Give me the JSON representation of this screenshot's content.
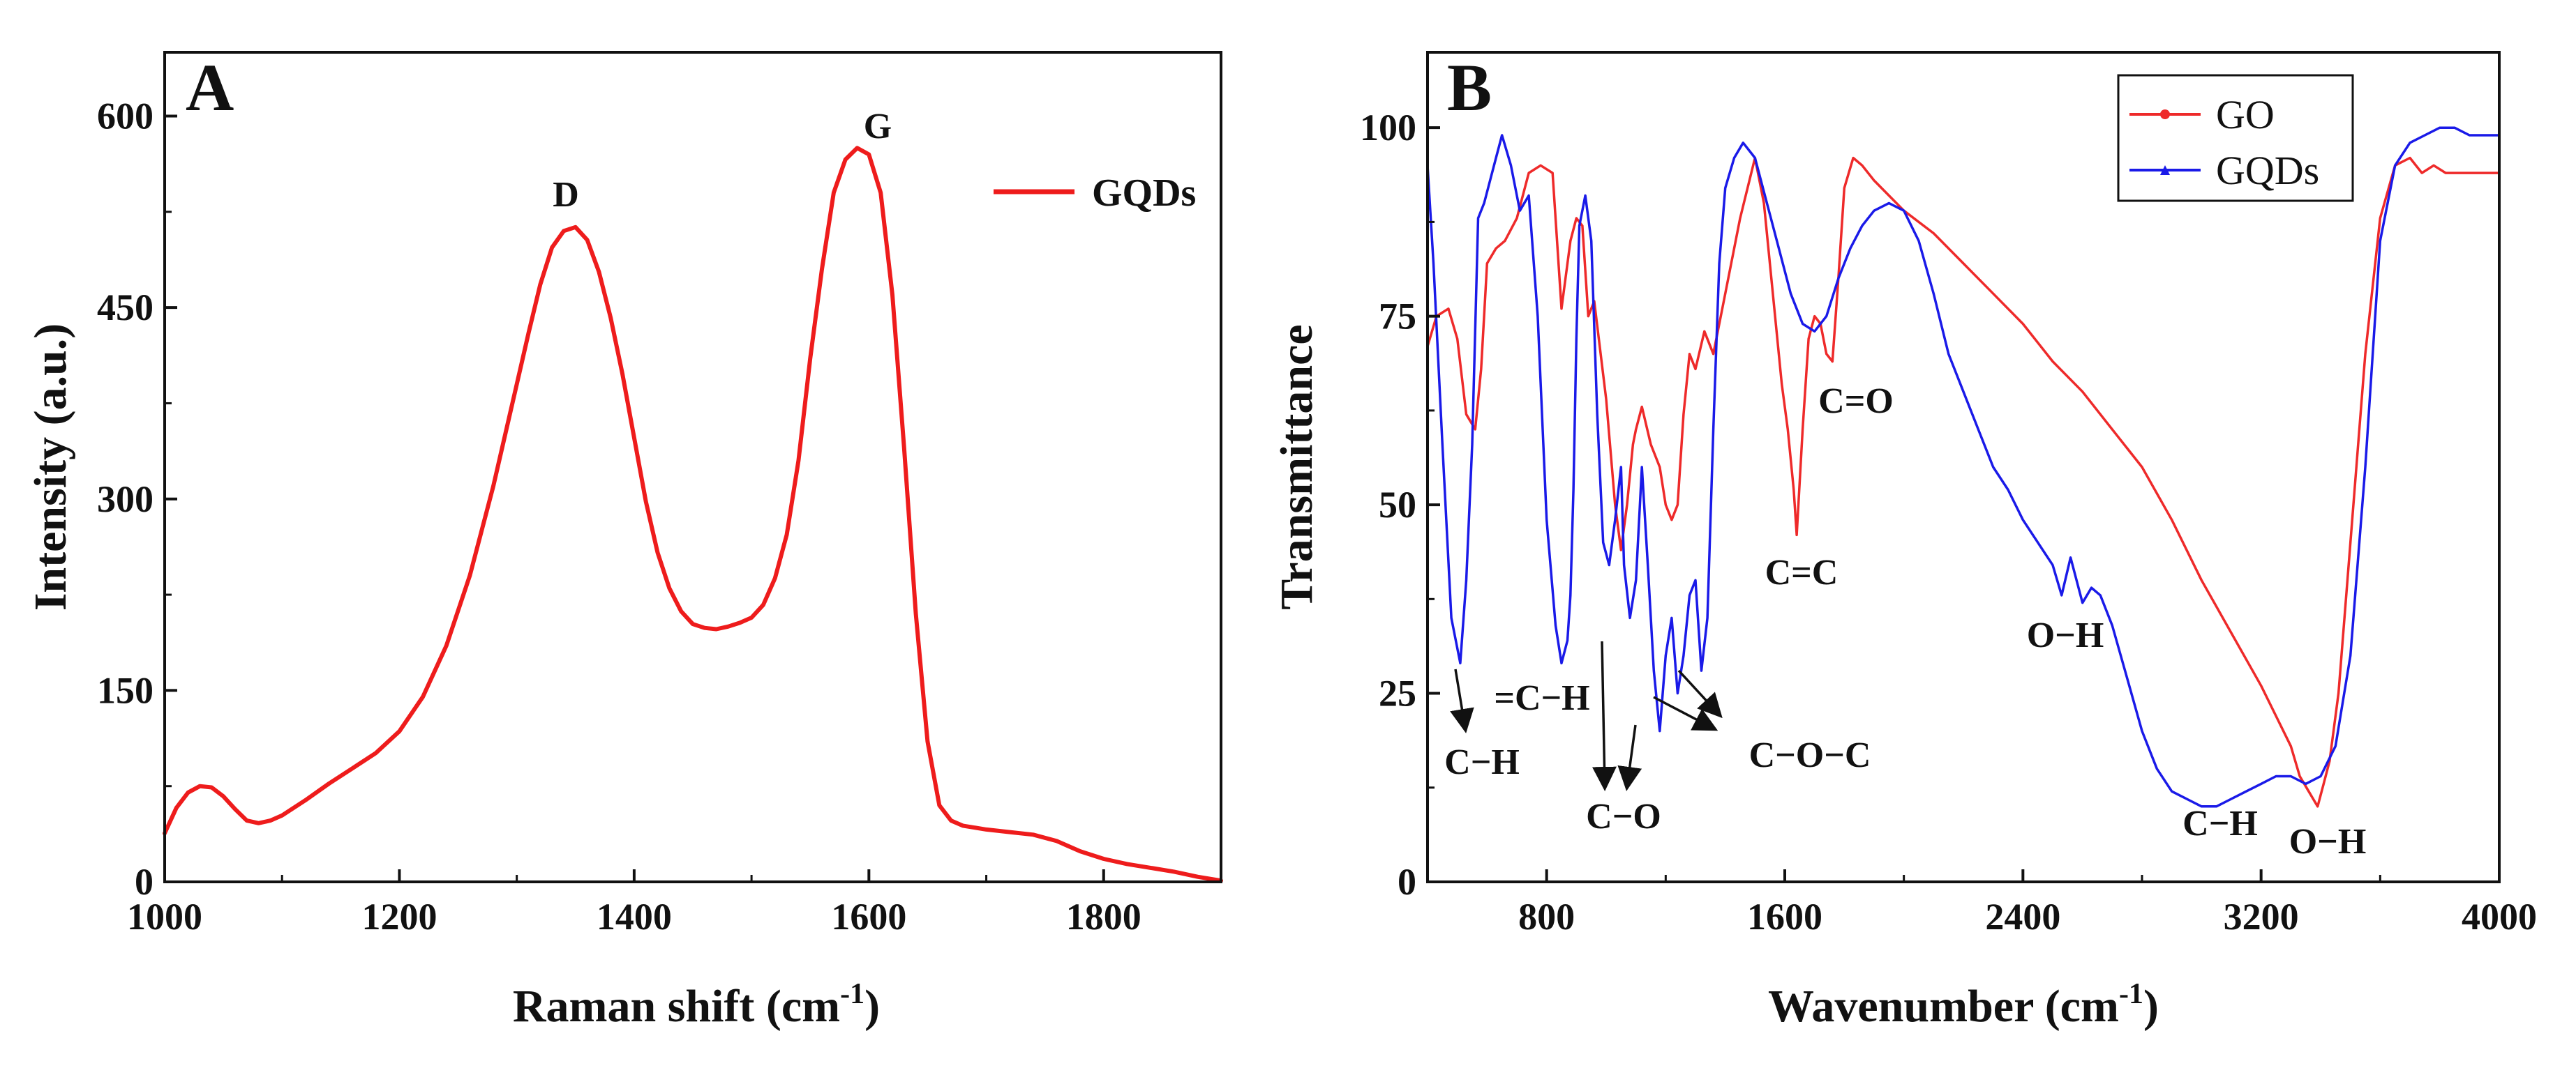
{
  "chart_data": [
    {
      "panel": "A",
      "type": "line",
      "xlabel": "Raman shift (cm",
      "xlabel_sup": "-1",
      "xlabel_end": ")",
      "ylabel": "Intensity (a.u.)",
      "xlim": [
        1000,
        1900
      ],
      "ylim": [
        0,
        650
      ],
      "xticks": [
        1000,
        1200,
        1400,
        1600,
        1800
      ],
      "yticks": [
        0,
        150,
        300,
        450,
        600
      ],
      "grid": false,
      "legend_position": "top-right",
      "series": [
        {
          "name": "GQDs",
          "color": "#ee1c1c",
          "x": [
            1000,
            1010,
            1020,
            1030,
            1040,
            1050,
            1060,
            1070,
            1080,
            1090,
            1100,
            1120,
            1140,
            1160,
            1180,
            1200,
            1220,
            1240,
            1260,
            1280,
            1300,
            1310,
            1320,
            1330,
            1340,
            1350,
            1360,
            1370,
            1380,
            1390,
            1400,
            1410,
            1420,
            1430,
            1440,
            1450,
            1460,
            1470,
            1480,
            1490,
            1500,
            1510,
            1520,
            1530,
            1540,
            1550,
            1560,
            1570,
            1580,
            1590,
            1600,
            1610,
            1620,
            1630,
            1640,
            1650,
            1660,
            1670,
            1680,
            1700,
            1720,
            1740,
            1760,
            1780,
            1800,
            1820,
            1840,
            1860,
            1880,
            1900
          ],
          "values": [
            38,
            58,
            70,
            75,
            74,
            67,
            57,
            48,
            46,
            48,
            52,
            64,
            77,
            89,
            101,
            118,
            145,
            185,
            240,
            310,
            390,
            430,
            468,
            497,
            510,
            513,
            503,
            478,
            442,
            398,
            348,
            298,
            258,
            230,
            212,
            202,
            199,
            198,
            200,
            203,
            207,
            217,
            238,
            272,
            330,
            410,
            480,
            540,
            566,
            575,
            570,
            540,
            460,
            340,
            210,
            110,
            60,
            48,
            44,
            41,
            39,
            37,
            32,
            24,
            18,
            14,
            11,
            8,
            4,
            1
          ]
        }
      ],
      "annotations": [
        "D",
        "G"
      ]
    },
    {
      "panel": "B",
      "type": "line",
      "xlabel": "Wavenumber (cm",
      "xlabel_sup": "-1",
      "xlabel_end": ")",
      "ylabel": "Transmittance",
      "xlim": [
        400,
        4000
      ],
      "ylim": [
        0,
        110
      ],
      "xticks": [
        800,
        1600,
        2400,
        3200,
        4000
      ],
      "yticks": [
        0,
        25,
        50,
        75,
        100
      ],
      "grid": false,
      "legend_position": "top-right",
      "series": [
        {
          "name": "GO",
          "color": "#ee2a2a",
          "x": [
            400,
            430,
            470,
            500,
            530,
            560,
            580,
            600,
            630,
            660,
            700,
            740,
            780,
            820,
            850,
            880,
            900,
            920,
            940,
            960,
            1000,
            1030,
            1050,
            1070,
            1090,
            1100,
            1120,
            1150,
            1180,
            1200,
            1220,
            1240,
            1260,
            1280,
            1300,
            1330,
            1360,
            1400,
            1450,
            1500,
            1530,
            1560,
            1590,
            1610,
            1630,
            1640,
            1660,
            1680,
            1700,
            1720,
            1740,
            1760,
            1780,
            1800,
            1830,
            1860,
            1900,
            1950,
            2000,
            2100,
            2200,
            2300,
            2400,
            2500,
            2600,
            2700,
            2800,
            2900,
            3000,
            3100,
            3200,
            3250,
            3300,
            3330,
            3360,
            3390,
            3410,
            3430,
            3460,
            3500,
            3550,
            3600,
            3650,
            3700,
            3740,
            3780,
            3820,
            3860,
            3900,
            3950,
            4000
          ],
          "values": [
            71,
            75,
            76,
            72,
            62,
            60,
            68,
            82,
            84,
            85,
            88,
            94,
            95,
            94,
            76,
            85,
            88,
            87,
            75,
            77,
            64,
            50,
            44,
            50,
            58,
            60,
            63,
            58,
            55,
            50,
            48,
            50,
            62,
            70,
            68,
            73,
            70,
            78,
            88,
            96,
            90,
            78,
            66,
            60,
            52,
            46,
            60,
            72,
            75,
            74,
            70,
            69,
            80,
            92,
            96,
            95,
            93,
            91,
            89,
            86,
            82,
            78,
            74,
            69,
            65,
            60,
            55,
            48,
            40,
            33,
            26,
            22,
            18,
            14,
            12,
            10,
            13,
            16,
            25,
            45,
            70,
            88,
            95,
            96,
            94,
            95,
            94,
            94,
            94,
            94,
            94
          ]
        },
        {
          "name": "GQDs",
          "color": "#1a1ae8",
          "x": [
            400,
            420,
            450,
            480,
            510,
            530,
            550,
            570,
            590,
            610,
            630,
            650,
            680,
            710,
            740,
            770,
            800,
            830,
            850,
            870,
            880,
            890,
            900,
            910,
            930,
            950,
            970,
            990,
            1010,
            1030,
            1050,
            1060,
            1080,
            1100,
            1120,
            1140,
            1160,
            1180,
            1200,
            1220,
            1240,
            1260,
            1280,
            1300,
            1320,
            1340,
            1360,
            1380,
            1400,
            1430,
            1460,
            1500,
            1540,
            1580,
            1620,
            1660,
            1700,
            1740,
            1780,
            1820,
            1860,
            1900,
            1950,
            2000,
            2050,
            2100,
            2150,
            2200,
            2250,
            2300,
            2350,
            2400,
            2450,
            2500,
            2530,
            2560,
            2600,
            2630,
            2660,
            2700,
            2750,
            2800,
            2850,
            2900,
            2950,
            3000,
            3050,
            3100,
            3150,
            3200,
            3250,
            3300,
            3350,
            3400,
            3450,
            3500,
            3550,
            3600,
            3650,
            3700,
            3750,
            3800,
            3850,
            3900,
            3950,
            4000
          ],
          "values": [
            95,
            82,
            58,
            35,
            29,
            40,
            58,
            88,
            90,
            93,
            96,
            99,
            95,
            89,
            91,
            75,
            48,
            34,
            29,
            32,
            38,
            52,
            72,
            87,
            91,
            85,
            62,
            45,
            42,
            48,
            55,
            42,
            35,
            40,
            55,
            42,
            28,
            20,
            30,
            35,
            25,
            30,
            38,
            40,
            28,
            35,
            60,
            82,
            92,
            96,
            98,
            96,
            90,
            84,
            78,
            74,
            73,
            75,
            80,
            84,
            87,
            89,
            90,
            89,
            85,
            78,
            70,
            65,
            60,
            55,
            52,
            48,
            45,
            42,
            38,
            43,
            37,
            39,
            38,
            34,
            27,
            20,
            15,
            12,
            11,
            10,
            10,
            11,
            12,
            13,
            14,
            14,
            13,
            14,
            18,
            30,
            55,
            85,
            95,
            98,
            99,
            100,
            100,
            99,
            99,
            99
          ]
        }
      ],
      "annotations": [
        "C−H",
        "=C−H",
        "C−O",
        "C−O−C",
        "C=C",
        "C=O",
        "O−H",
        "C−H",
        "O−H"
      ]
    }
  ],
  "panelA": {
    "label": "A",
    "legend": "GQDs",
    "peak_d": "D",
    "peak_g": "G"
  },
  "panelB": {
    "label": "B",
    "legend_go": "GO",
    "legend_gqds": "GQDs",
    "ann_ch_left": "C−H",
    "ann_ech": "=C−H",
    "ann_co": "C−O",
    "ann_coc": "C−O−C",
    "ann_cc": "C=C",
    "ann_cdo": "C=O",
    "ann_oh_mid": "O−H",
    "ann_ch_right": "C−H",
    "ann_oh_right": "O−H"
  },
  "colors": {
    "red": "#ee1c1c",
    "blue": "#1a1ae8",
    "axis": "#111111"
  }
}
